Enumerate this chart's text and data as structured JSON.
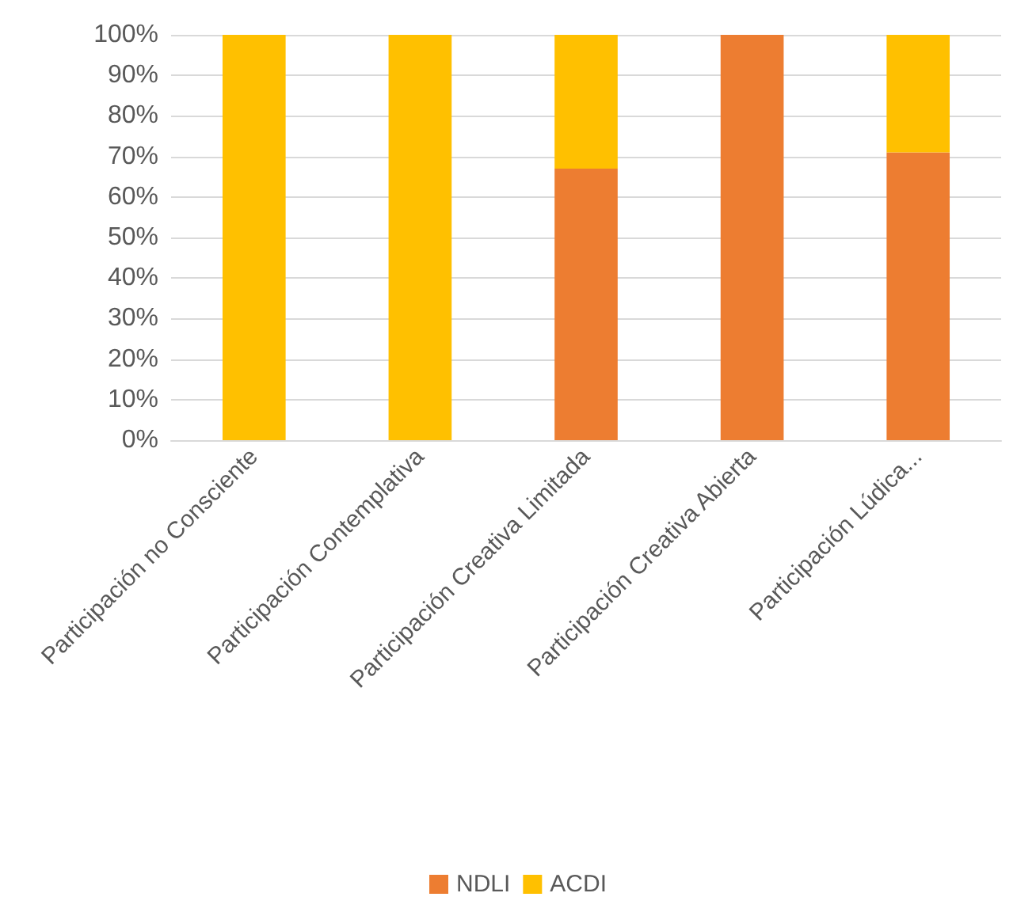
{
  "chart_data": {
    "type": "bar",
    "stacked": true,
    "categories": [
      "Participación no Consciente",
      "Participación Contemplativa",
      "Participación Creativa Limitada",
      "Participación Creativa Abierta",
      "Participación Lúdica..."
    ],
    "series": [
      {
        "name": "NDLI",
        "color": "#ed7d31",
        "values": [
          0,
          0,
          67,
          100,
          71
        ]
      },
      {
        "name": "ACDI",
        "color": "#ffc000",
        "values": [
          100,
          100,
          33,
          0,
          29
        ]
      }
    ],
    "ylim": [
      0,
      100
    ],
    "yticks": [
      {
        "value": 0,
        "label": "0%"
      },
      {
        "value": 10,
        "label": "10%"
      },
      {
        "value": 20,
        "label": "20%"
      },
      {
        "value": 30,
        "label": "30%"
      },
      {
        "value": 40,
        "label": "40%"
      },
      {
        "value": 50,
        "label": "50%"
      },
      {
        "value": 60,
        "label": "60%"
      },
      {
        "value": 70,
        "label": "70%"
      },
      {
        "value": 80,
        "label": "80%"
      },
      {
        "value": 90,
        "label": "90%"
      },
      {
        "value": 100,
        "label": "100%"
      }
    ],
    "grid": "y",
    "legend": "bottom"
  }
}
